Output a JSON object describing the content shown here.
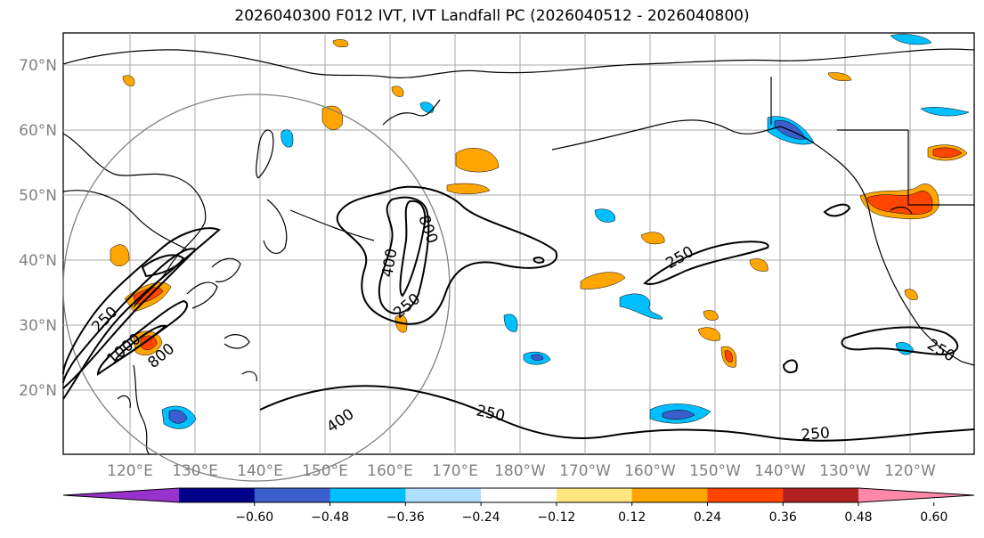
{
  "title": "2026040300 F012 IVT, IVT Landfall PC (2026040512 - 2026040800)",
  "lat_labels": [
    "70°N",
    "60°N",
    "50°N",
    "40°N",
    "30°N",
    "20°N"
  ],
  "lon_labels": [
    "120°E",
    "130°E",
    "140°E",
    "150°E",
    "160°E",
    "170°E",
    "180°W",
    "170°W",
    "160°W",
    "150°W",
    "140°W",
    "130°W",
    "120°W"
  ],
  "contour_labels": [
    "250",
    "250",
    "250",
    "250",
    "400",
    "400",
    "800",
    "1000",
    "800",
    "250",
    "250"
  ],
  "colorbar": {
    "levels": [
      "−0.60",
      "−0.48",
      "−0.36",
      "−0.24",
      "−0.12",
      "0.12",
      "0.24",
      "0.36",
      "0.48",
      "0.60"
    ],
    "colors": [
      "#9932cc",
      "#00008b",
      "#3a5fcd",
      "#00bfff",
      "#b0e0ff",
      "#ffffff",
      "#ffe680",
      "#ffa500",
      "#ff4500",
      "#b22222",
      "#ff88aa"
    ]
  },
  "colors": {
    "grid": "#a9a9a9",
    "coast": "#000000",
    "contour": "#000000",
    "circle": "#808080"
  }
}
